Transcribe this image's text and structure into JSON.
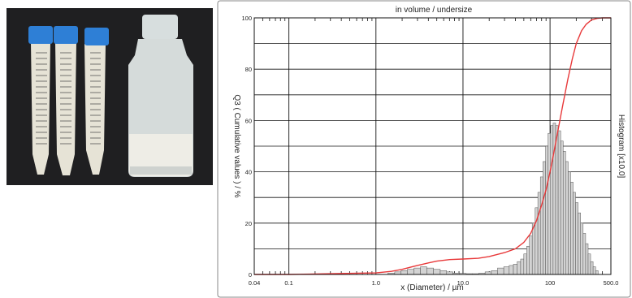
{
  "photo": {
    "tube_count": 3,
    "colors": {
      "background": "#1f1f21",
      "cap": "#2e7fd6",
      "liquid": "#e6e3d6",
      "bottle_glass": "#d7dede"
    }
  },
  "chart_data": {
    "type": "bar",
    "title": "in volume / undersize",
    "xlabel": "x (Diameter) / µm",
    "ylabel_left": "Q3 ( Cumulative values ) / %",
    "ylabel_right": "Histogram [x10.0]",
    "x_scale": "log",
    "xlim": [
      0.04,
      500
    ],
    "ylim": [
      0,
      100
    ],
    "x_ticks": [
      {
        "value": 0.04,
        "label": "0.04"
      },
      {
        "value": 0.1,
        "label": "0.1"
      },
      {
        "value": 1,
        "label": "1.0"
      },
      {
        "value": 10,
        "label": "10.0"
      },
      {
        "value": 100,
        "label": "100"
      },
      {
        "value": 500,
        "label": "500.0"
      }
    ],
    "y_ticks": [
      {
        "value": 0,
        "label": "0"
      },
      {
        "value": 20,
        "label": "20"
      },
      {
        "value": 40,
        "label": "40"
      },
      {
        "value": 60,
        "label": "60"
      },
      {
        "value": 80,
        "label": "80"
      },
      {
        "value": 100,
        "label": "100"
      }
    ],
    "grid": true,
    "colors": {
      "curve": "#e8393a",
      "bars": "#d3d3d3",
      "bar_edge": "#555555",
      "grid": "#111111"
    },
    "histogram": {
      "x": [
        1.5,
        1.8,
        2.1,
        2.5,
        3,
        3.5,
        4.2,
        5,
        6,
        7,
        8.4,
        10,
        11.8,
        14,
        16.5,
        19.5,
        23,
        27,
        32,
        36,
        40,
        44,
        48,
        52,
        56,
        60,
        65,
        70,
        75,
        80,
        86,
        92,
        98,
        105,
        112,
        120,
        128,
        137,
        146,
        156,
        167,
        178,
        190,
        203,
        217,
        232,
        248,
        265,
        283,
        302,
        323,
        345
      ],
      "values": [
        0.5,
        1,
        1.5,
        2,
        2.5,
        3,
        2.5,
        2,
        1.5,
        1,
        0.5,
        0.4,
        0.3,
        0.3,
        0.5,
        1,
        1.5,
        2.5,
        3,
        3.5,
        4,
        5,
        6,
        8,
        11,
        15,
        20,
        26,
        32,
        38,
        44,
        50,
        55,
        58,
        59,
        58,
        56,
        52,
        48,
        44,
        40,
        36,
        32,
        28,
        24,
        20,
        16,
        12,
        8,
        5,
        3,
        1.5
      ]
    },
    "cumulative": {
      "x": [
        0.04,
        0.1,
        0.3,
        1,
        1.5,
        2,
        3,
        4,
        5,
        7,
        10,
        15,
        20,
        30,
        40,
        50,
        60,
        70,
        80,
        90,
        100,
        110,
        120,
        140,
        160,
        180,
        200,
        230,
        260,
        300,
        350,
        400,
        450,
        500
      ],
      "y": [
        0,
        0,
        0.3,
        0.6,
        1.2,
        2,
        3.5,
        4.5,
        5.2,
        5.8,
        6,
        6.3,
        7,
        8.5,
        10,
        12.5,
        16,
        21,
        27,
        33,
        40,
        47,
        54,
        66,
        76,
        84,
        90,
        95,
        97.5,
        99.2,
        99.8,
        100,
        100,
        100
      ]
    }
  }
}
